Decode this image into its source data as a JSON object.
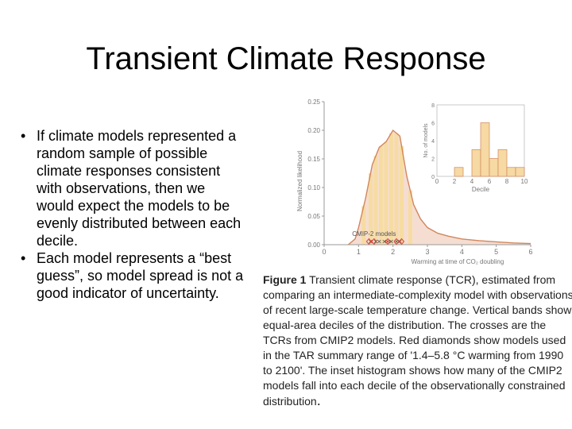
{
  "slide": {
    "title": "Transient Climate Response",
    "bullets": [
      "If climate models represented a random sample of possible climate responses consistent with observations, then we would expect the models to be evenly distributed between each decile.",
      "Each model represents a “best guess”, so model spread is not a good indicator of uncertainty."
    ],
    "bullet_glyph": "•"
  },
  "figure": {
    "caption_lead": "Figure 1",
    "caption_body": " Transient climate response (TCR), estimated from comparing an intermediate-complexity model with observations of recent large-scale temperature change. Vertical bands show equal-area deciles of the distribution. The crosses are the TCRs from CMIP2 models. Red diamonds show models used in the TAR summary range of '1.4–5.8 °C warming from 1990 to 2100'. The inset histogram shows how many of the CMIP2 models fall into each decile of the observationally constrained distribution",
    "caption_end": "."
  },
  "chart_data": [
    {
      "type": "area",
      "ylabel": "Normalized likelihood",
      "xlabel": "Warming at time of CO₂ doubling",
      "xlim": [
        0,
        6
      ],
      "ylim": [
        0,
        0.25
      ],
      "x_ticks": [
        "0",
        "1",
        "2",
        "3",
        "4",
        "5",
        "6"
      ],
      "y_ticks": [
        "0.00",
        "0.05",
        "0.10",
        "0.15",
        "0.20",
        "0.25"
      ],
      "x": [
        0.7,
        0.9,
        1.0,
        1.2,
        1.4,
        1.6,
        1.8,
        2.0,
        2.2,
        2.4,
        2.6,
        2.8,
        3.0,
        3.3,
        3.6,
        4.0,
        4.5,
        5.0,
        5.5,
        6.0
      ],
      "y": [
        0.0,
        0.01,
        0.03,
        0.08,
        0.14,
        0.17,
        0.18,
        0.2,
        0.19,
        0.12,
        0.07,
        0.045,
        0.03,
        0.02,
        0.015,
        0.01,
        0.007,
        0.005,
        0.003,
        0.002
      ],
      "decile_bands": [
        1.15,
        1.35,
        1.5,
        1.65,
        1.8,
        1.95,
        2.1,
        2.25,
        2.5
      ],
      "cmip2_label": "CMIP-2 models",
      "cmip2_crosses": [
        1.35,
        1.5,
        1.6,
        1.75,
        1.85,
        1.95,
        2.1,
        2.2
      ],
      "tar_diamonds": [
        1.3,
        1.45,
        1.85,
        2.1,
        2.25
      ],
      "colors": {
        "curve": "#d2865c",
        "fill": "#f5ddd1",
        "band": "#f6dca2",
        "diamond": "#e0423a",
        "cross": "#555555",
        "axis": "#999999"
      }
    },
    {
      "type": "bar",
      "xlabel": "Decile",
      "ylabel": "No. of models",
      "xlim": [
        0,
        10
      ],
      "ylim": [
        0,
        8
      ],
      "x_ticks": [
        "0",
        "2",
        "4",
        "6",
        "8",
        "10"
      ],
      "y_ticks": [
        "0",
        "2",
        "4",
        "6",
        "8"
      ],
      "categories": [
        1,
        2,
        3,
        4,
        5,
        6,
        7,
        8,
        9,
        10
      ],
      "values": [
        0,
        0,
        1,
        0,
        3,
        6,
        2,
        3,
        1,
        1
      ],
      "colors": {
        "bar": "#f6d9a3",
        "edge": "#d2865c"
      }
    }
  ]
}
